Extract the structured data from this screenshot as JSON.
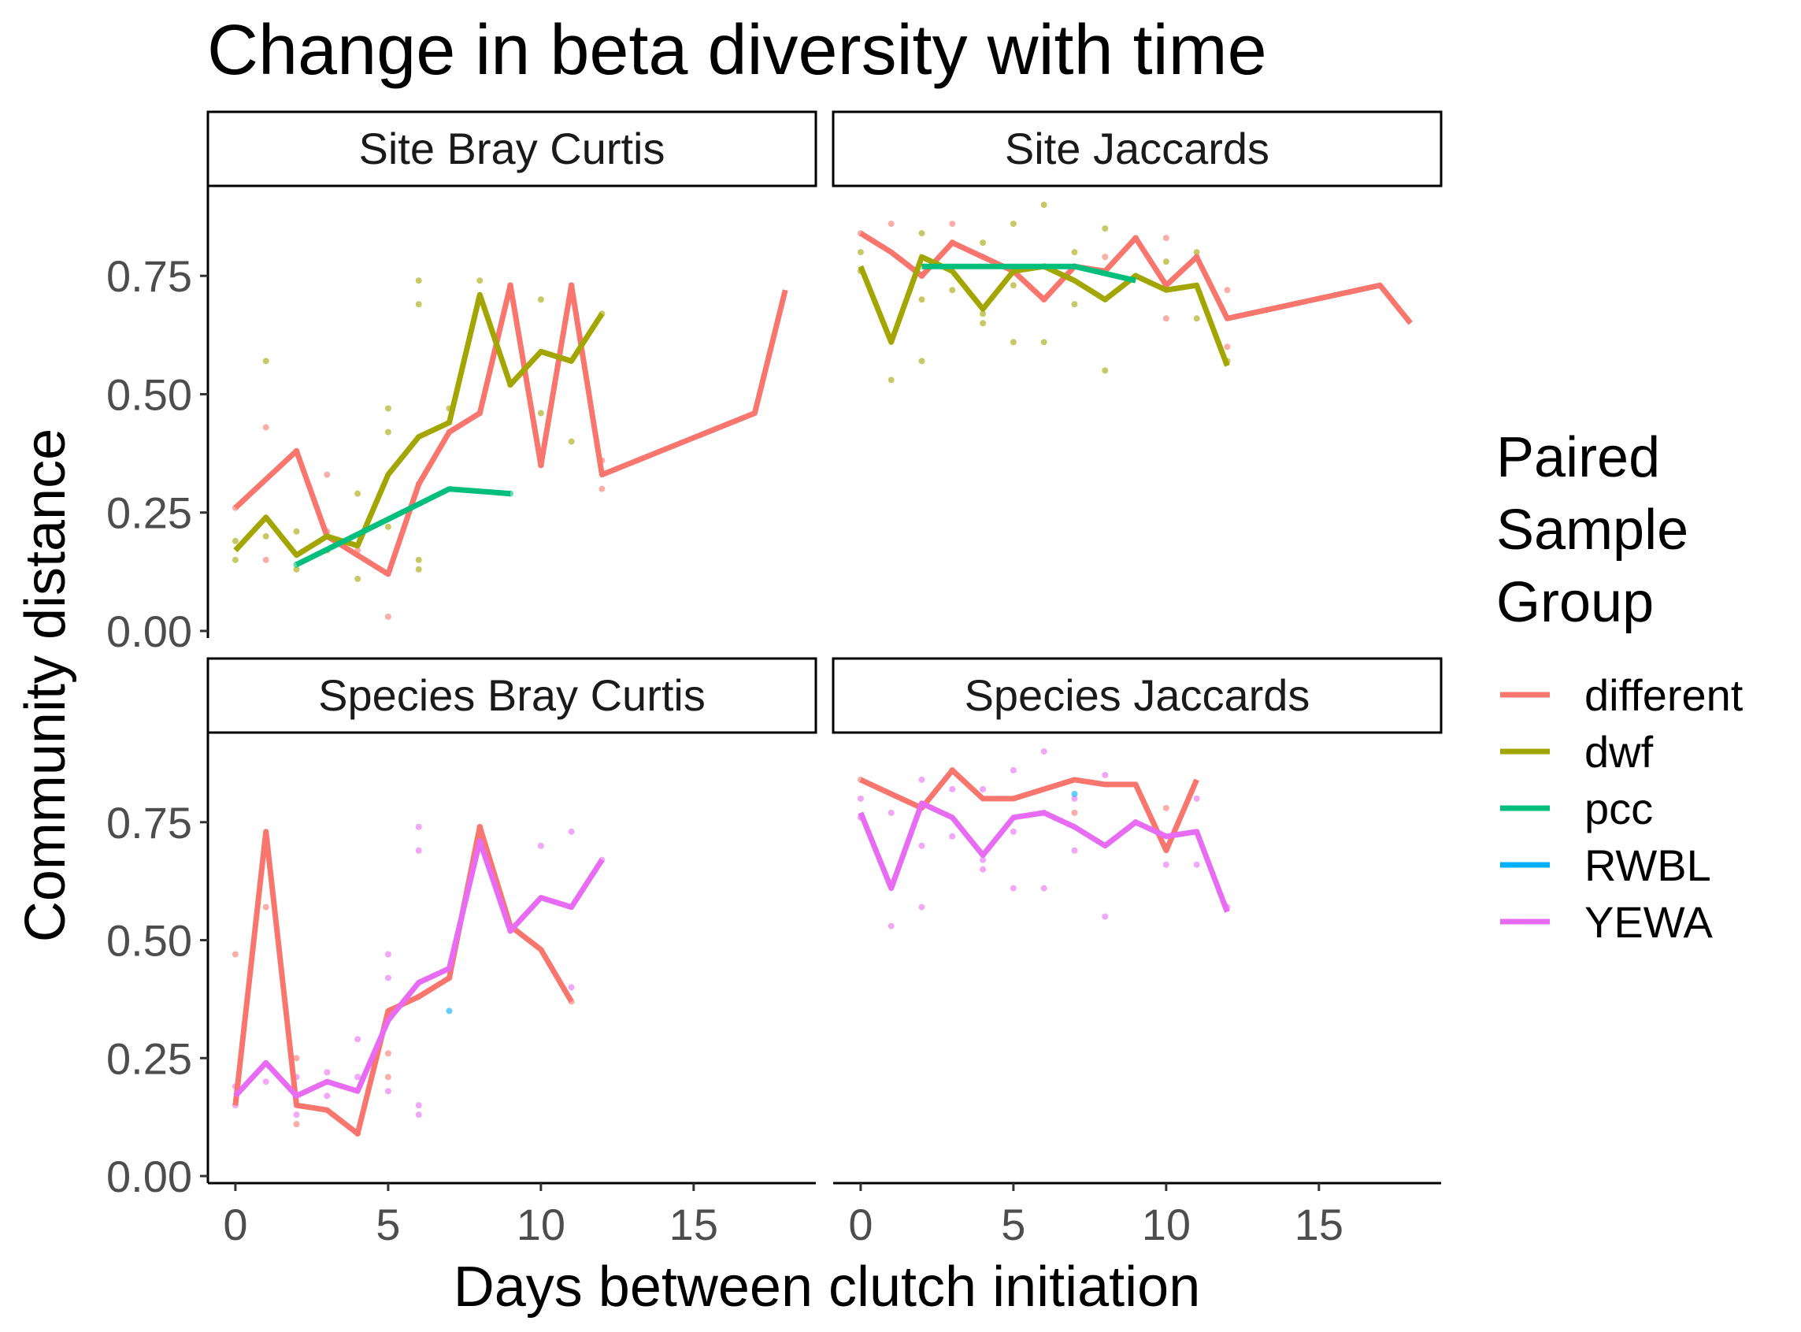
{
  "chart_data": {
    "type": "line",
    "title": "Change in beta diversity with time",
    "xlabel": "Days between clutch initiation",
    "ylabel": "Community distance",
    "xlim": [
      -0.9,
      19.0
    ],
    "ylim": [
      -0.015,
      0.94
    ],
    "x_ticks": [
      0,
      5,
      10,
      15
    ],
    "y_ticks": [
      0.0,
      0.25,
      0.5,
      0.75
    ],
    "y_tick_labels": [
      "0.00",
      "0.25",
      "0.50",
      "0.75"
    ],
    "grid": false,
    "legend": {
      "title": [
        "Paired",
        "Sample",
        "Group"
      ],
      "placement": "right",
      "entries": [
        {
          "name": "different",
          "color": "#F8766D"
        },
        {
          "name": "dwf",
          "color": "#A3A500"
        },
        {
          "name": "pcc",
          "color": "#00BF7D"
        },
        {
          "name": "RWBL",
          "color": "#00B0F6"
        },
        {
          "name": "YEWA",
          "color": "#E76BF3"
        }
      ]
    },
    "panels": [
      {
        "strip": "Site Bray Curtis",
        "series": [
          {
            "name": "different",
            "color": "#F8766D",
            "x": [
              0,
              1,
              2,
              3,
              4,
              5,
              6,
              7,
              8,
              9,
              10,
              11,
              12,
              17,
              18
            ],
            "y": [
              0.26,
              0.32,
              0.38,
              0.2,
              0.16,
              0.12,
              0.31,
              0.42,
              0.46,
              0.73,
              0.35,
              0.73,
              0.33,
              0.46,
              0.72
            ]
          },
          {
            "name": "dwf",
            "color": "#A3A500",
            "x": [
              0,
              1,
              2,
              3,
              4,
              5,
              6,
              7,
              8,
              9,
              10,
              11,
              12
            ],
            "y": [
              0.17,
              0.24,
              0.16,
              0.2,
              0.18,
              0.33,
              0.41,
              0.44,
              0.71,
              0.52,
              0.59,
              0.57,
              0.67
            ]
          },
          {
            "name": "pcc",
            "color": "#00BF7D",
            "x": [
              2,
              7,
              9
            ],
            "y": [
              0.14,
              0.3,
              0.29
            ]
          }
        ],
        "points": [
          {
            "color": "#A3A500",
            "x": [
              0,
              0,
              1,
              1,
              2,
              2,
              3,
              4,
              4,
              5,
              5,
              5,
              6,
              6,
              6,
              6,
              7,
              8,
              9,
              10,
              10,
              11,
              12
            ],
            "y": [
              0.15,
              0.19,
              0.57,
              0.2,
              0.13,
              0.21,
              0.17,
              0.29,
              0.11,
              0.47,
              0.42,
              0.22,
              0.74,
              0.69,
              0.15,
              0.13,
              0.47,
              0.74,
              0.52,
              0.7,
              0.46,
              0.4,
              0.67
            ]
          },
          {
            "color": "#F8766D",
            "x": [
              0,
              1,
              1,
              2,
              3,
              3,
              4,
              5,
              6,
              7,
              8,
              9,
              10,
              11,
              12,
              12
            ],
            "y": [
              0.26,
              0.43,
              0.15,
              0.38,
              0.33,
              0.21,
              0.17,
              0.03,
              0.31,
              0.42,
              0.46,
              0.73,
              0.35,
              0.73,
              0.36,
              0.3
            ]
          },
          {
            "color": "#00BF7D",
            "x": [
              2,
              9
            ],
            "y": [
              0.14,
              0.29
            ]
          }
        ]
      },
      {
        "strip": "Site Jaccards",
        "series": [
          {
            "name": "different",
            "color": "#F8766D",
            "x": [
              0,
              1,
              2,
              3,
              4,
              5,
              6,
              7,
              8,
              9,
              10,
              11,
              12,
              17,
              18
            ],
            "y": [
              0.84,
              0.8,
              0.75,
              0.82,
              0.79,
              0.76,
              0.7,
              0.77,
              0.76,
              0.83,
              0.73,
              0.79,
              0.66,
              0.73,
              0.65
            ]
          },
          {
            "name": "dwf",
            "color": "#A3A500",
            "x": [
              0,
              1,
              2,
              3,
              4,
              5,
              6,
              7,
              8,
              9,
              10,
              11,
              12
            ],
            "y": [
              0.77,
              0.61,
              0.79,
              0.76,
              0.68,
              0.76,
              0.77,
              0.74,
              0.7,
              0.75,
              0.72,
              0.73,
              0.56
            ]
          },
          {
            "name": "pcc",
            "color": "#00BF7D",
            "x": [
              2,
              7,
              9
            ],
            "y": [
              0.77,
              0.77,
              0.74
            ]
          }
        ],
        "points": [
          {
            "color": "#A3A500",
            "x": [
              0,
              0,
              1,
              2,
              2,
              2,
              3,
              3,
              4,
              4,
              4,
              5,
              5,
              5,
              6,
              6,
              6,
              7,
              7,
              8,
              8,
              9,
              10,
              11,
              11,
              12
            ],
            "y": [
              0.8,
              0.76,
              0.53,
              0.84,
              0.7,
              0.57,
              0.82,
              0.72,
              0.82,
              0.67,
              0.65,
              0.86,
              0.73,
              0.61,
              0.9,
              0.77,
              0.61,
              0.8,
              0.69,
              0.85,
              0.55,
              0.75,
              0.78,
              0.8,
              0.66,
              0.57
            ]
          },
          {
            "color": "#F8766D",
            "x": [
              0,
              1,
              2,
              3,
              3,
              4,
              5,
              6,
              7,
              8,
              9,
              10,
              10,
              11,
              12,
              12
            ],
            "y": [
              0.84,
              0.86,
              0.75,
              0.86,
              0.82,
              0.79,
              0.76,
              0.7,
              0.77,
              0.79,
              0.83,
              0.83,
              0.66,
              0.79,
              0.72,
              0.6
            ]
          }
        ]
      },
      {
        "strip": "Species Bray Curtis",
        "series": [
          {
            "name": "different",
            "color": "#F8766D",
            "x": [
              0,
              1,
              2,
              3,
              4,
              5,
              6,
              7,
              8,
              9,
              10,
              11
            ],
            "y": [
              0.15,
              0.73,
              0.15,
              0.14,
              0.09,
              0.35,
              0.38,
              0.42,
              0.74,
              0.53,
              0.48,
              0.37
            ]
          },
          {
            "name": "YEWA",
            "color": "#E76BF3",
            "x": [
              0,
              1,
              2,
              3,
              4,
              5,
              6,
              7,
              8,
              9,
              10,
              11,
              12
            ],
            "y": [
              0.17,
              0.24,
              0.17,
              0.2,
              0.18,
              0.33,
              0.41,
              0.44,
              0.71,
              0.52,
              0.59,
              0.57,
              0.67
            ]
          }
        ],
        "points": [
          {
            "color": "#F8766D",
            "x": [
              0,
              1,
              2,
              2,
              4,
              5,
              5,
              6,
              7,
              8,
              11
            ],
            "y": [
              0.47,
              0.57,
              0.25,
              0.11,
              0.09,
              0.26,
              0.21,
              0.38,
              0.42,
              0.74,
              0.37
            ]
          },
          {
            "color": "#E76BF3",
            "x": [
              0,
              0,
              1,
              2,
              2,
              3,
              3,
              4,
              4,
              5,
              5,
              5,
              6,
              6,
              6,
              6,
              8,
              9,
              10,
              11,
              11,
              12
            ],
            "y": [
              0.19,
              0.15,
              0.2,
              0.21,
              0.13,
              0.22,
              0.17,
              0.29,
              0.21,
              0.47,
              0.42,
              0.18,
              0.74,
              0.69,
              0.15,
              0.13,
              0.71,
              0.52,
              0.7,
              0.73,
              0.4,
              0.67
            ]
          },
          {
            "color": "#00B0F6",
            "x": [
              7
            ],
            "y": [
              0.35
            ]
          }
        ]
      },
      {
        "strip": "Species Jaccards",
        "series": [
          {
            "name": "different",
            "color": "#F8766D",
            "x": [
              0,
              1,
              2,
              3,
              4,
              5,
              6,
              7,
              8,
              9,
              10,
              11
            ],
            "y": [
              0.84,
              0.81,
              0.78,
              0.86,
              0.8,
              0.8,
              0.82,
              0.84,
              0.83,
              0.83,
              0.69,
              0.84
            ]
          },
          {
            "name": "YEWA",
            "color": "#E76BF3",
            "x": [
              0,
              1,
              2,
              3,
              4,
              5,
              6,
              7,
              8,
              9,
              10,
              11,
              12
            ],
            "y": [
              0.77,
              0.61,
              0.79,
              0.76,
              0.68,
              0.76,
              0.77,
              0.74,
              0.7,
              0.75,
              0.72,
              0.73,
              0.56
            ]
          }
        ],
        "points": [
          {
            "color": "#E76BF3",
            "x": [
              0,
              0,
              1,
              1,
              2,
              2,
              2,
              3,
              3,
              4,
              4,
              4,
              5,
              5,
              5,
              6,
              6,
              6,
              7,
              7,
              8,
              8,
              9,
              10,
              11,
              11,
              12
            ],
            "y": [
              0.8,
              0.76,
              0.53,
              0.77,
              0.84,
              0.7,
              0.57,
              0.82,
              0.72,
              0.82,
              0.67,
              0.65,
              0.86,
              0.73,
              0.61,
              0.9,
              0.77,
              0.61,
              0.8,
              0.69,
              0.85,
              0.55,
              0.75,
              0.66,
              0.8,
              0.66,
              0.57
            ]
          },
          {
            "color": "#F8766D",
            "x": [
              0,
              3,
              7,
              10
            ],
            "y": [
              0.84,
              0.86,
              0.77,
              0.78
            ]
          },
          {
            "color": "#00B0F6",
            "x": [
              7
            ],
            "y": [
              0.81
            ]
          }
        ]
      }
    ]
  }
}
